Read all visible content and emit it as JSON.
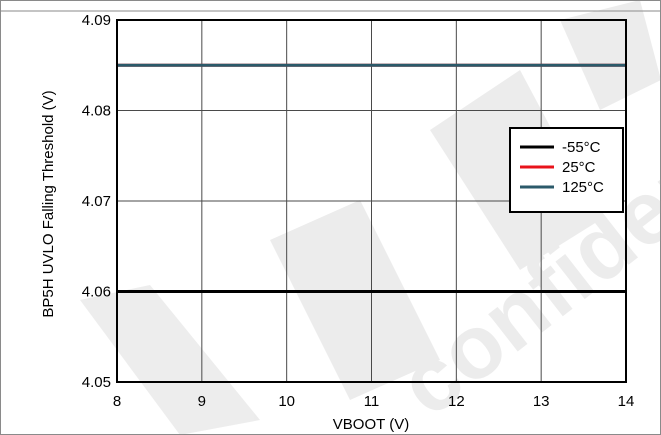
{
  "chart_data": {
    "type": "line",
    "xlabel": "VBOOT (V)",
    "ylabel": "BP5H UVLO Falling Threshold (V)",
    "xlim": [
      8,
      14
    ],
    "ylim": [
      4.05,
      4.09
    ],
    "x_ticks": [
      8,
      9,
      10,
      11,
      12,
      13,
      14
    ],
    "x_tick_labels": [
      "8",
      "9",
      "10",
      "11",
      "12",
      "13",
      "14"
    ],
    "y_ticks": [
      4.05,
      4.06,
      4.07,
      4.08,
      4.09
    ],
    "y_tick_labels": [
      "4.05",
      "4.06",
      "4.07",
      "4.08",
      "4.09"
    ],
    "grid": true,
    "legend_position": "right",
    "series": [
      {
        "name": "-55°C",
        "color": "#000000",
        "x": [
          8,
          14
        ],
        "y": [
          4.06,
          4.06
        ]
      },
      {
        "name": "25°C",
        "color": "#e8131b",
        "x": [
          8,
          14
        ],
        "y": [
          4.085,
          4.085
        ]
      },
      {
        "name": "125°C",
        "color": "#2b5a6a",
        "x": [
          8,
          14
        ],
        "y": [
          4.085,
          4.085
        ]
      }
    ],
    "watermark": "DRAFT confidential"
  }
}
